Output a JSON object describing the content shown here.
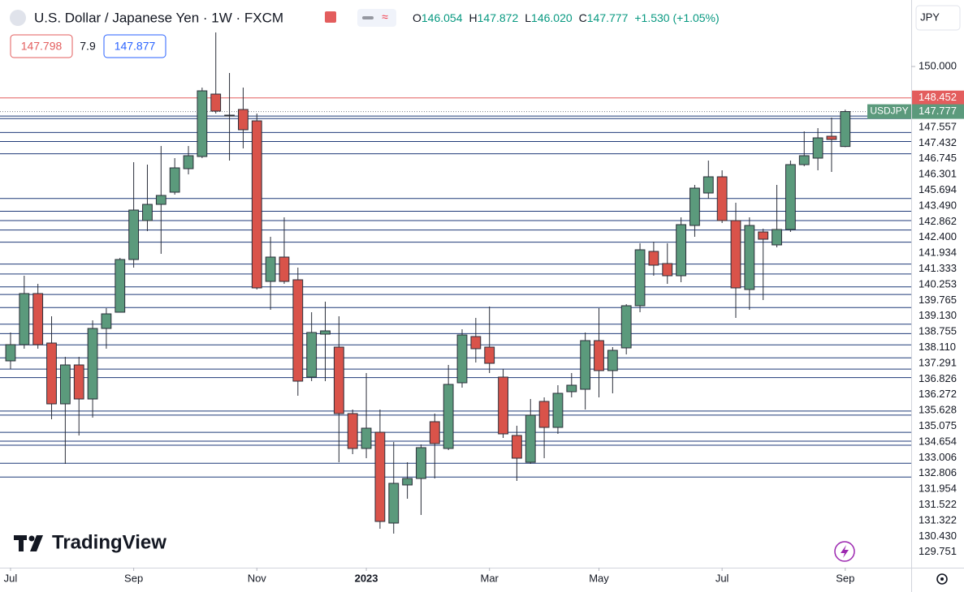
{
  "header": {
    "title": "U.S. Dollar / Japanese Yen · 1W · FXCM",
    "ohlc": [
      {
        "label": "O",
        "value": "146.054"
      },
      {
        "label": "H",
        "value": "147.872"
      },
      {
        "label": "L",
        "value": "146.020"
      },
      {
        "label": "C",
        "value": "147.777"
      }
    ],
    "change": "+1.530 (+1.05%)",
    "bid": "147.798",
    "spread": "7.9",
    "ask": "147.877",
    "currency": "JPY"
  },
  "branding": {
    "logo": "TradingView"
  },
  "chart_data": {
    "type": "candlestick",
    "symbol": "USDJPY",
    "up_color": "#5b9a7c",
    "down_color": "#d9534a",
    "open": [
      135.48,
      136.28,
      138.8,
      136.36,
      133.36,
      135.28,
      133.6,
      137.08,
      137.88,
      140.48,
      142.4,
      143.2,
      143.8,
      144.96,
      145.56,
      148.64,
      147.56,
      147.88,
      147.32,
      139.4,
      140.6,
      139.48,
      134.68,
      136.8,
      136.16,
      132.88,
      131.16,
      131.96,
      127.48,
      129.36,
      129.68,
      132.48,
      131.16,
      134.4,
      136.68,
      136.16,
      134.68,
      131.8,
      130.48,
      133.48,
      132.2,
      133.96,
      134.08,
      136.48,
      135.0,
      136.12,
      138.2,
      140.88,
      140.28,
      139.68,
      142.16,
      143.76,
      144.56,
      142.4,
      139.0,
      141.84,
      141.2,
      141.96,
      145.16,
      145.48,
      146.56,
      146.054
    ],
    "high": [
      136.88,
      139.68,
      139.28,
      137.68,
      135.68,
      135.68,
      137.48,
      138.08,
      140.56,
      145.28,
      145.16,
      146.08,
      145.48,
      146.08,
      148.96,
      151.68,
      149.68,
      148.96,
      147.68,
      141.6,
      142.56,
      140.08,
      137.88,
      138.4,
      137.68,
      133.08,
      134.88,
      133.08,
      131.48,
      130.48,
      131.36,
      132.88,
      135.28,
      137.04,
      137.6,
      138.16,
      135.08,
      132.28,
      133.6,
      133.68,
      134.28,
      134.88,
      136.88,
      138.08,
      136.16,
      138.28,
      141.28,
      141.36,
      141.28,
      142.56,
      144.16,
      145.36,
      144.88,
      143.28,
      142.56,
      142.0,
      144.16,
      145.36,
      146.8,
      146.96,
      147.48,
      147.872
    ],
    "low": [
      135.08,
      136.08,
      136.08,
      132.6,
      130.4,
      131.8,
      132.68,
      136.08,
      137.88,
      140.08,
      141.88,
      140.76,
      143.68,
      144.68,
      145.48,
      147.68,
      145.36,
      145.96,
      139.0,
      138.0,
      139.28,
      133.76,
      134.48,
      134.48,
      130.48,
      130.88,
      130.68,
      127.2,
      126.96,
      128.68,
      127.88,
      129.68,
      131.08,
      134.16,
      135.4,
      134.88,
      131.68,
      129.56,
      130.4,
      130.68,
      131.88,
      133.68,
      133.08,
      133.68,
      133.88,
      135.8,
      137.88,
      139.68,
      139.28,
      139.36,
      141.6,
      143.48,
      142.28,
      137.6,
      138.0,
      138.48,
      141.08,
      141.84,
      145.08,
      144.88,
      144.8,
      146.02
    ],
    "close": [
      136.28,
      138.8,
      136.28,
      133.36,
      135.28,
      133.6,
      137.08,
      137.8,
      140.48,
      142.92,
      143.2,
      143.64,
      145.0,
      145.6,
      148.8,
      147.8,
      147.6,
      146.88,
      139.08,
      140.6,
      139.4,
      134.48,
      136.88,
      136.96,
      132.88,
      131.16,
      132.16,
      127.56,
      129.44,
      129.68,
      131.2,
      131.4,
      134.32,
      136.76,
      136.08,
      135.36,
      131.88,
      130.68,
      132.8,
      132.2,
      133.88,
      134.28,
      136.48,
      135.0,
      136.0,
      138.2,
      140.96,
      140.2,
      139.68,
      142.2,
      144.0,
      144.56,
      142.4,
      139.08,
      142.16,
      141.48,
      141.96,
      145.16,
      145.6,
      146.48,
      146.4,
      147.777
    ],
    "xlim": [
      -0.77,
      65.82
    ],
    "ylim": [
      125.28,
      153.28
    ],
    "xticks": [
      {
        "value": 0,
        "label": "Jul"
      },
      {
        "value": 9,
        "label": "Sep"
      },
      {
        "value": 18,
        "label": "Nov"
      },
      {
        "value": 26,
        "label": "2023"
      },
      {
        "value": 35,
        "label": "Mar"
      },
      {
        "value": 43,
        "label": "May"
      },
      {
        "value": 52,
        "label": "Jul"
      },
      {
        "value": 61,
        "label": "Sep"
      }
    ],
    "yticks": [
      {
        "value": 150,
        "label": "150.000"
      }
    ],
    "alert_line": {
      "value": 148.452,
      "label": "148.452",
      "color": "#e35d5d"
    },
    "last_price": {
      "value": 147.777,
      "label": "147.777",
      "color": "#5b9a7c"
    },
    "levels": [
      {
        "value": 147.557,
        "label": "147.557"
      },
      {
        "value": 147.432,
        "label": "147.432"
      },
      {
        "value": 146.745,
        "label": "146.745"
      },
      {
        "value": 146.301,
        "label": "146.301"
      },
      {
        "value": 145.694,
        "label": "145.694"
      },
      {
        "value": 143.49,
        "label": "143.490"
      },
      {
        "value": 142.862,
        "label": "142.862"
      },
      {
        "value": 142.4,
        "label": "142.400"
      },
      {
        "value": 141.934,
        "label": "141.934"
      },
      {
        "value": 141.333,
        "label": "141.333"
      },
      {
        "value": 140.253,
        "label": "140.253"
      },
      {
        "value": 139.765,
        "label": "139.765"
      },
      {
        "value": 139.13,
        "label": "139.130"
      },
      {
        "value": 138.755,
        "label": "138.755"
      },
      {
        "value": 138.11,
        "label": "138.110"
      },
      {
        "value": 137.291,
        "label": "137.291"
      },
      {
        "value": 136.826,
        "label": "136.826"
      },
      {
        "value": 136.272,
        "label": "136.272"
      },
      {
        "value": 135.628,
        "label": "135.628"
      },
      {
        "value": 135.075,
        "label": "135.075"
      },
      {
        "value": 134.654,
        "label": "134.654"
      },
      {
        "value": 133.006,
        "label": "133.006"
      },
      {
        "value": 132.806,
        "label": "132.806"
      },
      {
        "value": 131.954,
        "label": "131.954"
      },
      {
        "value": 131.522,
        "label": "131.522"
      },
      {
        "value": 131.322,
        "label": "131.322"
      },
      {
        "value": 130.43,
        "label": "130.430"
      },
      {
        "value": 129.751,
        "label": "129.751"
      }
    ],
    "level_color": "#1f3a78"
  }
}
